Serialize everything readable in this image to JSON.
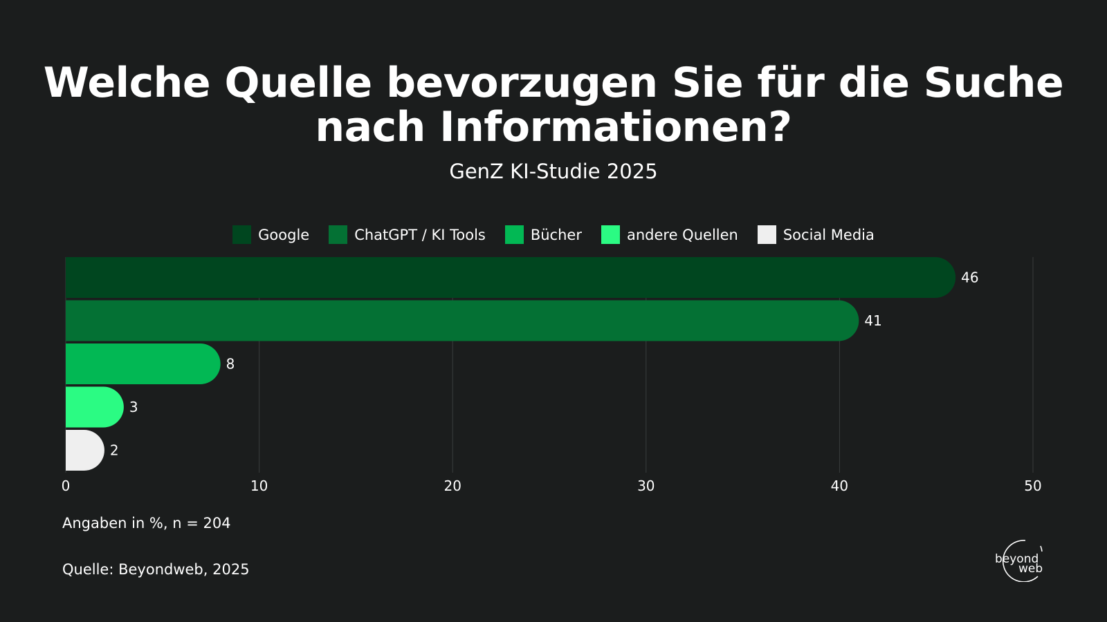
{
  "colors": {
    "background": "#1b1d1d",
    "gridline": "#3a3d3d",
    "text": "#ffffff"
  },
  "chart_data": {
    "type": "bar",
    "orientation": "horizontal",
    "title": "Welche Quelle bevorzugen Sie für die Suche nach Informationen?",
    "subtitle": "GenZ KI-Studie 2025",
    "xlabel": "",
    "ylabel": "",
    "xlim": [
      0,
      50
    ],
    "xticks": [
      0,
      10,
      20,
      30,
      40,
      50
    ],
    "grid": true,
    "legend_position": "top-center",
    "series": [
      {
        "name": "Google",
        "value": 46,
        "color": "#00461f"
      },
      {
        "name": "ChatGPT / KI Tools",
        "value": 41,
        "color": "#047134"
      },
      {
        "name": "Bücher",
        "value": 8,
        "color": "#02b854"
      },
      {
        "name": "andere Quellen",
        "value": 3,
        "color": "#2bfb83"
      },
      {
        "name": "Social Media",
        "value": 2,
        "color": "#efefef"
      }
    ],
    "note": "Angaben in %, n = 204",
    "source": "Quelle: Beyondweb, 2025"
  },
  "logo": {
    "line1": "beyond",
    "line2": "web"
  }
}
